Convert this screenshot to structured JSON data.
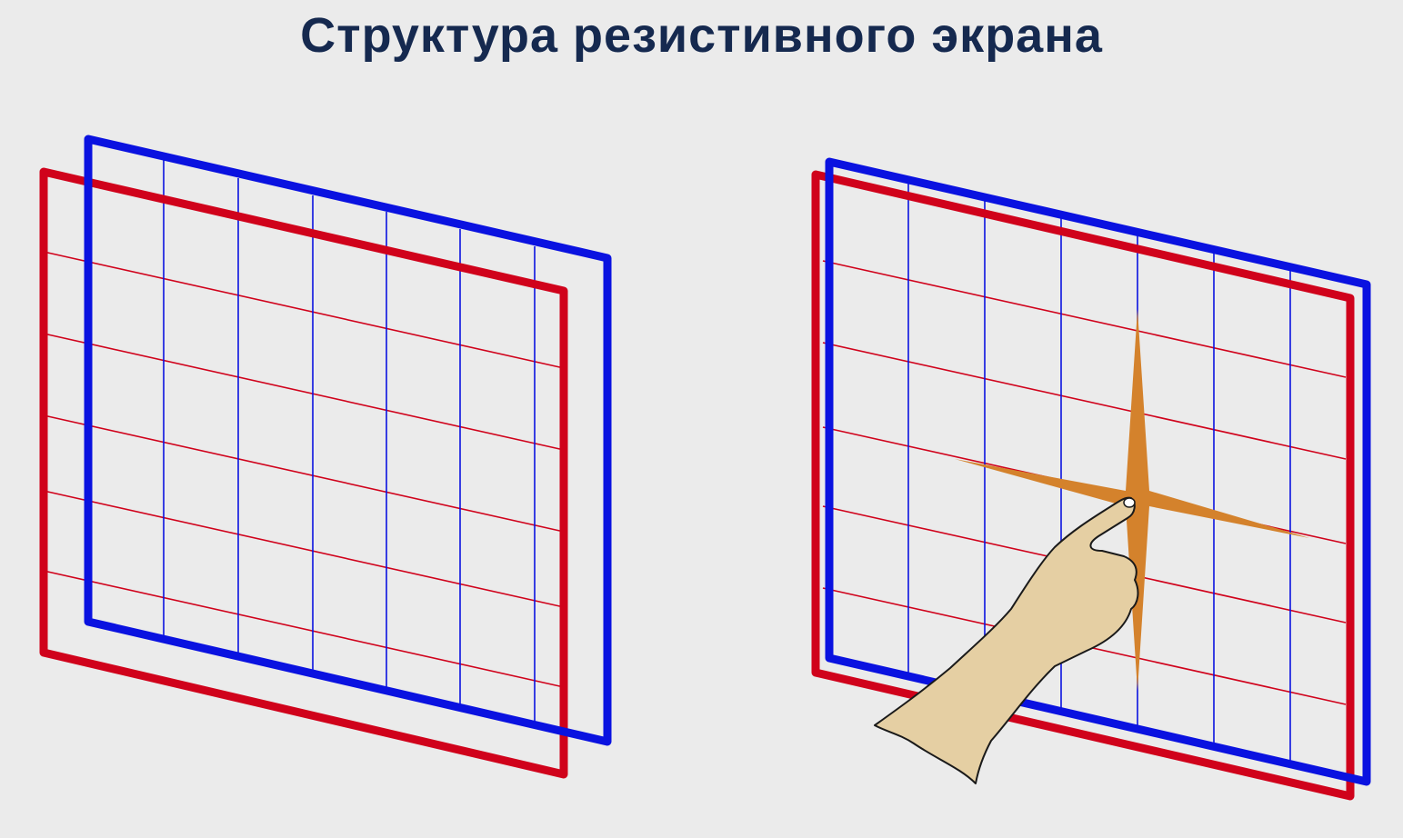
{
  "slide": {
    "title": "Структура резистивного экрана"
  },
  "colors": {
    "background": "#ebebeb",
    "title": "#15294f",
    "red_layer": "#d0021b",
    "blue_layer": "#0a12e0",
    "touch_flash": "#d4822c",
    "hand_fill": "#e5cfa3",
    "hand_outline": "#1a1a1a"
  },
  "diagrams": [
    {
      "name": "layers-apart",
      "touch": false
    },
    {
      "name": "layers-pressed",
      "touch": true
    }
  ]
}
